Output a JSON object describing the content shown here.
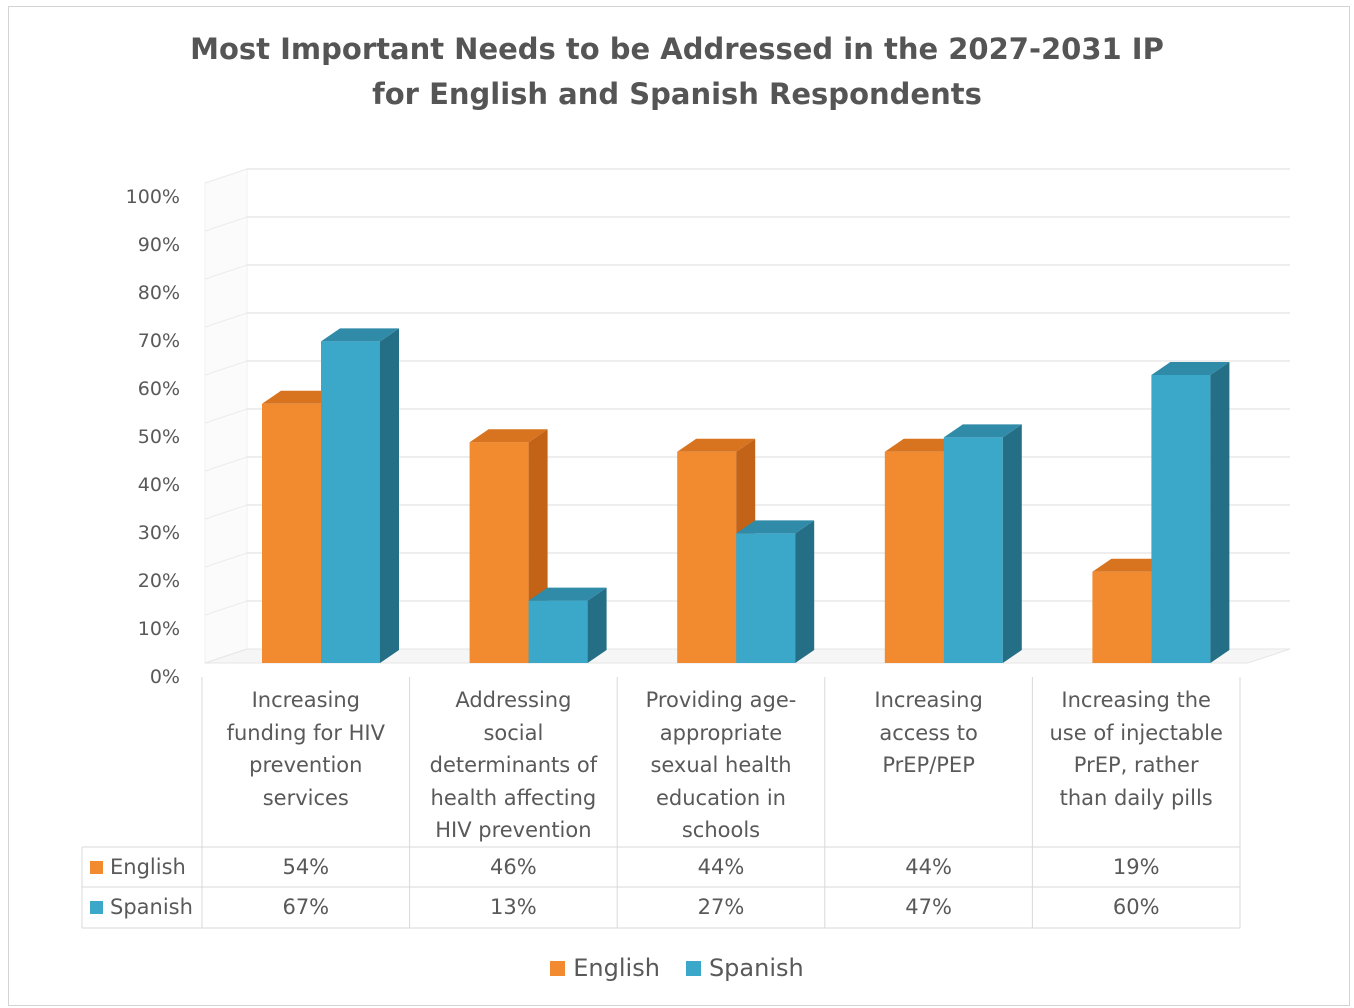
{
  "chart_data": {
    "type": "bar",
    "title_line1": "Most Important Needs to be Addressed in the 2027-2031 IP",
    "title_line2": "for English and Spanish Respondents",
    "categories": [
      [
        "Increasing",
        "funding for HIV",
        "prevention",
        "services"
      ],
      [
        "Addressing",
        "social",
        "determinants of",
        "health affecting",
        "HIV prevention"
      ],
      [
        "Providing age-",
        "appropriate",
        "sexual health",
        "education in",
        "schools"
      ],
      [
        "Increasing",
        "access to",
        "PrEP/PEP"
      ],
      [
        "Increasing the",
        "use of injectable",
        "PrEP, rather",
        "than daily pills"
      ]
    ],
    "series": [
      {
        "name": "English",
        "values": [
          54,
          46,
          44,
          44,
          19
        ],
        "labels": [
          "54%",
          "46%",
          "44%",
          "44%",
          "19%"
        ],
        "color": "#f28b30",
        "dark": "#c26318",
        "top": "#d8731f"
      },
      {
        "name": "Spanish",
        "values": [
          67,
          13,
          27,
          47,
          60
        ],
        "labels": [
          "67%",
          "13%",
          "27%",
          "47%",
          "60%"
        ],
        "color": "#3ba8c9",
        "dark": "#256f86",
        "top": "#2f8ba7"
      }
    ],
    "y_ticks": [
      "0%",
      "10%",
      "20%",
      "30%",
      "40%",
      "50%",
      "60%",
      "70%",
      "80%",
      "90%",
      "100%"
    ],
    "ylim": [
      0,
      100
    ],
    "grid": true,
    "legend_placement": "bottom",
    "data_table": true
  }
}
